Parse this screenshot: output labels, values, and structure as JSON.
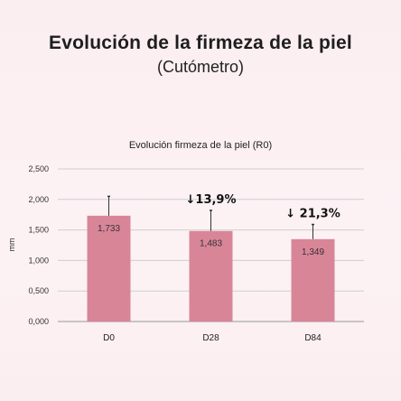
{
  "page": {
    "title": "Evolución de la firmeza de la piel",
    "subtitle": "(Cutómetro)"
  },
  "colors": {
    "background": "#fbeff2",
    "bar": "#d98598",
    "grid": "#cfcfcf",
    "axis": "#999999"
  },
  "chart_data": {
    "type": "bar",
    "title": "Evolución firmeza de la piel (R0)",
    "xlabel": "",
    "ylabel": "mm",
    "categories": [
      "D0",
      "D28",
      "D84"
    ],
    "values": [
      1.733,
      1.483,
      1.349
    ],
    "value_labels": [
      "1,733",
      "1,483",
      "1,349"
    ],
    "error_upper": [
      2.05,
      1.82,
      1.59
    ],
    "annotations": [
      "",
      "↓13,9%",
      "↓ 21,3%"
    ],
    "ylim": [
      0,
      2.5
    ],
    "yticks": [
      0,
      0.5,
      1.0,
      1.5,
      2.0,
      2.5
    ],
    "ytick_labels": [
      "0,000",
      "0,500",
      "1,000",
      "1,500",
      "2,000",
      "2,500"
    ],
    "grid": true,
    "legend": "none"
  }
}
